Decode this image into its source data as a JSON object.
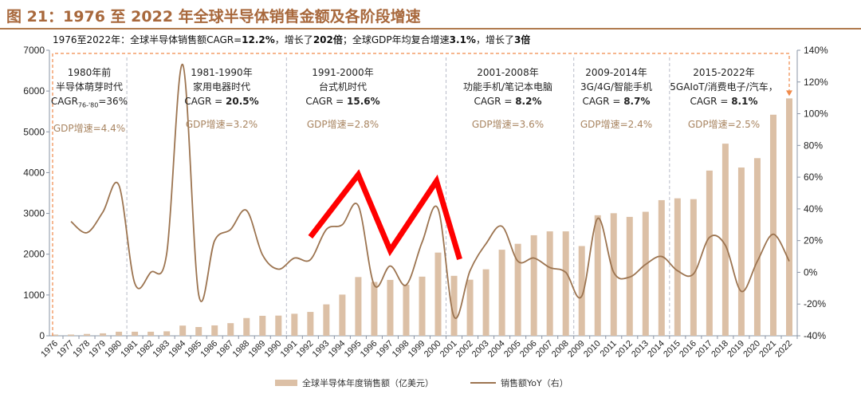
{
  "header": {
    "title": "图 21：1976 至 2022 年全球半导体销售金额及各阶段增速",
    "subtitle_parts": [
      "1976至2022年：全球半导体销售额CAGR=",
      "12.2%",
      "，增长了",
      "202倍",
      "；全球GDP年均复合增速",
      "3.1%",
      "，增长了",
      "3倍"
    ]
  },
  "periods": [
    {
      "years": "1980年前",
      "theme": "半导体萌芽时代",
      "cagr_label": "CAGR",
      "cagr_sub": "76-'80",
      "cagr_value": "=36%",
      "gdp": "GDP增速=4.4%"
    },
    {
      "years": "1981-1990年",
      "theme": "家用电器时代",
      "cagr_label": "CAGR = ",
      "cagr_value": "20.5%",
      "gdp": "GDP增速=3.2%"
    },
    {
      "years": "1991-2000年",
      "theme": "台式机时代",
      "cagr_label": "CAGR = ",
      "cagr_value": "15.6%",
      "gdp": "GDP增速=2.8%"
    },
    {
      "years": "2001-2008年",
      "theme": "功能手机/笔记本电脑",
      "cagr_label": "CAGR = ",
      "cagr_value": "8.2%",
      "gdp": "GDP增速=3.6%"
    },
    {
      "years": "2009-2014年",
      "theme": "3G/4G/智能手机",
      "cagr_label": "CAGR = ",
      "cagr_value": "8.7%",
      "gdp": "GDP增速=2.4%"
    },
    {
      "years": "2015-2022年",
      "theme": "5GAIoT/消费电子/汽车，",
      "cagr_label": "CAGR = ",
      "cagr_value": "8.1%",
      "gdp": "GDP增速=2.5%"
    }
  ],
  "chart_data": {
    "type": "bar+line",
    "categories": [
      "1976",
      "1977",
      "1978",
      "1979",
      "1980",
      "1981",
      "1982",
      "1983",
      "1984",
      "1985",
      "1986",
      "1987",
      "1988",
      "1989",
      "1990",
      "1991",
      "1992",
      "1993",
      "1994",
      "1995",
      "1996",
      "1997",
      "1998",
      "1999",
      "2000",
      "2001",
      "2002",
      "2003",
      "2004",
      "2005",
      "2006",
      "2007",
      "2008",
      "2009",
      "2010",
      "2011",
      "2012",
      "2013",
      "2014",
      "2015",
      "2016",
      "2017",
      "2018",
      "2019",
      "2020",
      "2021",
      "2022"
    ],
    "series": [
      {
        "name": "全球半导体年度销售额（亿美元）",
        "type": "bar",
        "axis": "left",
        "color": "#dcc0a6",
        "values": [
          30,
          30,
          45,
          60,
          100,
          100,
          100,
          110,
          250,
          215,
          255,
          310,
          435,
          490,
          495,
          540,
          585,
          770,
          1010,
          1440,
          1320,
          1370,
          1250,
          1450,
          2040,
          1470,
          1375,
          1630,
          2110,
          2255,
          2465,
          2560,
          2560,
          2200,
          2955,
          3005,
          2915,
          3040,
          3325,
          3370,
          3350,
          4050,
          4710,
          4125,
          4355,
          5420,
          5820
        ]
      },
      {
        "name": "销售额YoY（右）",
        "type": "line",
        "axis": "right",
        "color": "#9c7450",
        "values": [
          null,
          32,
          25,
          38,
          55,
          -7,
          0,
          12,
          131,
          -14,
          20,
          27,
          39,
          11,
          2,
          9,
          8,
          27,
          30,
          42,
          -8,
          4,
          -8,
          19,
          40,
          -28,
          1,
          18,
          29,
          7,
          9,
          3,
          0,
          -15,
          34,
          0,
          -3,
          5,
          10,
          1,
          -1,
          22,
          17,
          -12,
          7,
          24,
          7
        ]
      }
    ],
    "left_axis": {
      "ylim": [
        0,
        7000
      ],
      "ticks": [
        "0",
        "1000",
        "2000",
        "3000",
        "4000",
        "5000",
        "6000",
        "7000"
      ]
    },
    "right_axis": {
      "ylim": [
        -40,
        140
      ],
      "ticks": [
        "-40%",
        "-20%",
        "0%",
        "20%",
        "40%",
        "60%",
        "80%",
        "100%",
        "120%",
        "140%"
      ]
    },
    "legend_position": "bottom",
    "grid": false
  },
  "colors": {
    "title": "#a8683c",
    "bar": "#dcc0a6",
    "line": "#9c7450",
    "annotation_red": "#ff0000",
    "box": "#f08a4b",
    "divider": "#b8bcc8"
  }
}
